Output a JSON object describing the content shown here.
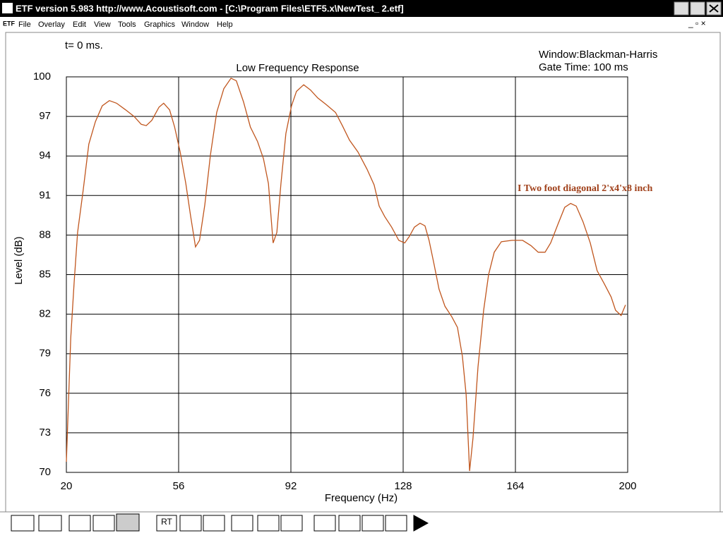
{
  "window": {
    "title": "ETF version 5.983 http://www.Acoustisoft.com - [C:\\Program Files\\ETF5.x\\NewTest_ 2.etf]",
    "app_icon": "ETF"
  },
  "menu": {
    "items": [
      "File",
      "Overlay",
      "Edit",
      "View",
      "Tools",
      "Graphics",
      "Window",
      "Help"
    ]
  },
  "info": {
    "time": "t= 0 ms.",
    "window_type": "Window:Blackman-Harris",
    "gate_time": "Gate Time: 100 ms"
  },
  "toolbar": {
    "rt_label": "RT"
  },
  "chart_data": {
    "type": "line",
    "title": "Low Frequency Response",
    "x_label": "Frequency (Hz)",
    "y_label": "Level (dB)",
    "xlim": [
      20,
      200
    ],
    "xticks": [
      20,
      56,
      92,
      128,
      164,
      200
    ],
    "ylim": [
      70,
      100
    ],
    "yticks": [
      70,
      73,
      76,
      79,
      82,
      85,
      88,
      91,
      94,
      97,
      100
    ],
    "grid": true,
    "legend": "right",
    "x": [
      20,
      21.4,
      22.5,
      23.6,
      25.4,
      27.2,
      29.3,
      31.5,
      33.8,
      36.1,
      39.0,
      41.7,
      44.0,
      45.6,
      47.4,
      49.7,
      51.2,
      53.1,
      54.7,
      56.5,
      58.3,
      59.8,
      61.4,
      62.7,
      64.4,
      66.2,
      68.2,
      70.5,
      72.8,
      74.5,
      76.8,
      79.0,
      81.3,
      83.2,
      84.8,
      86.3,
      87.5,
      88.8,
      90.4,
      92.2,
      93.8,
      96.1,
      98.3,
      100.6,
      103.3,
      106.3,
      108.5,
      110.8,
      113.5,
      116.4,
      118.7,
      120.3,
      122.1,
      124.3,
      126.6,
      128.5,
      130.0,
      131.6,
      133.4,
      135.0,
      136.3,
      137.9,
      139.5,
      141.4,
      143.6,
      145.4,
      147.0,
      148.2,
      149.3,
      150.4,
      152.0,
      153.8,
      155.4,
      157.2,
      159.5,
      162.9,
      166.3,
      169.0,
      171.3,
      173.5,
      175.3,
      177.6,
      179.8,
      181.7,
      183.5,
      185.7,
      188.0,
      190.2,
      192.5,
      194.7,
      196.1,
      197.9,
      199.3
    ],
    "series": [
      {
        "name": "I Two foot diagonal 2'x4'x8 inch",
        "color": "#c0561e",
        "label_color": "#a0401a",
        "values": [
          70.8,
          80.2,
          84.4,
          88.2,
          91.4,
          94.9,
          96.6,
          97.8,
          98.2,
          98.0,
          97.5,
          97.0,
          96.4,
          96.3,
          96.7,
          97.7,
          98.0,
          97.5,
          96.2,
          94.3,
          91.9,
          89.5,
          87.1,
          87.6,
          90.3,
          94.1,
          97.3,
          99.1,
          99.9,
          99.7,
          98.1,
          96.2,
          95.1,
          93.8,
          91.9,
          87.4,
          88.2,
          91.9,
          95.7,
          97.8,
          98.9,
          99.4,
          99.0,
          98.4,
          97.9,
          97.3,
          96.3,
          95.2,
          94.3,
          93.0,
          91.8,
          90.2,
          89.4,
          88.6,
          87.6,
          87.4,
          87.9,
          88.6,
          88.9,
          88.7,
          87.6,
          85.8,
          83.9,
          82.6,
          81.8,
          81.0,
          78.8,
          75.9,
          70.1,
          72.6,
          78.0,
          82.3,
          85.0,
          86.7,
          87.5,
          87.6,
          87.6,
          87.2,
          86.7,
          86.7,
          87.4,
          88.8,
          90.1,
          90.4,
          90.2,
          89.0,
          87.4,
          85.3,
          84.3,
          83.3,
          82.3,
          81.9,
          82.7
        ]
      }
    ]
  }
}
